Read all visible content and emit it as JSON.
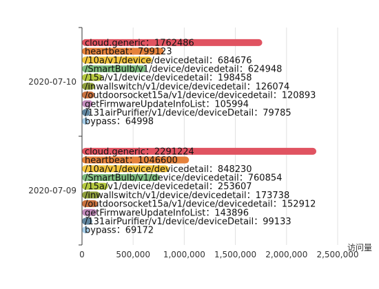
{
  "chart_data": {
    "type": "bar",
    "orientation": "horizontal",
    "xlabel": "访问量",
    "xlim": [
      0,
      2500000
    ],
    "xticks": [
      0,
      500000,
      1000000,
      1500000,
      2000000,
      2500000
    ],
    "xtick_labels": [
      "0",
      "500,000",
      "1,000,000",
      "1,500,000",
      "2,000,000",
      "2,500,000"
    ],
    "grid": true,
    "categories": [
      "2020-07-10",
      "2020-07-09"
    ],
    "series": [
      {
        "name": "cloud.generic",
        "color": "#e05361",
        "values": [
          1762486,
          2291224
        ]
      },
      {
        "name": "heartbeat",
        "color": "#e5823c",
        "values": [
          799123,
          1046600
        ]
      },
      {
        "name": "/10a/v1/device/devicedetail",
        "color": "#f3c53e",
        "values": [
          684676,
          848230
        ]
      },
      {
        "name": "/SmartBulb/v1/device/devicedetail",
        "color": "#7fbc7f",
        "values": [
          624948,
          760854
        ]
      },
      {
        "name": "/15a/v1/device/devicedetail",
        "color": "#b5c93f",
        "values": [
          198458,
          253607
        ]
      },
      {
        "name": "/inwallswitch/v1/device/devicedetail",
        "color": "#8f9f3c",
        "values": [
          126074,
          173738
        ]
      },
      {
        "name": "/outdoorsocket15a/v1/device/devicedetail",
        "color": "#c9723f",
        "values": [
          120893,
          152912
        ]
      },
      {
        "name": "getFirmwareUpdateInfoList",
        "color": "#c38cbc",
        "values": [
          105994,
          143896
        ]
      },
      {
        "name": "/131airPurifier/v1/device/deviceDetail",
        "color": "#61869f",
        "values": [
          79785,
          99133
        ]
      },
      {
        "name": "bypass",
        "color": "#a5cde8",
        "values": [
          64998,
          69172
        ]
      }
    ],
    "label_separator": "："
  }
}
